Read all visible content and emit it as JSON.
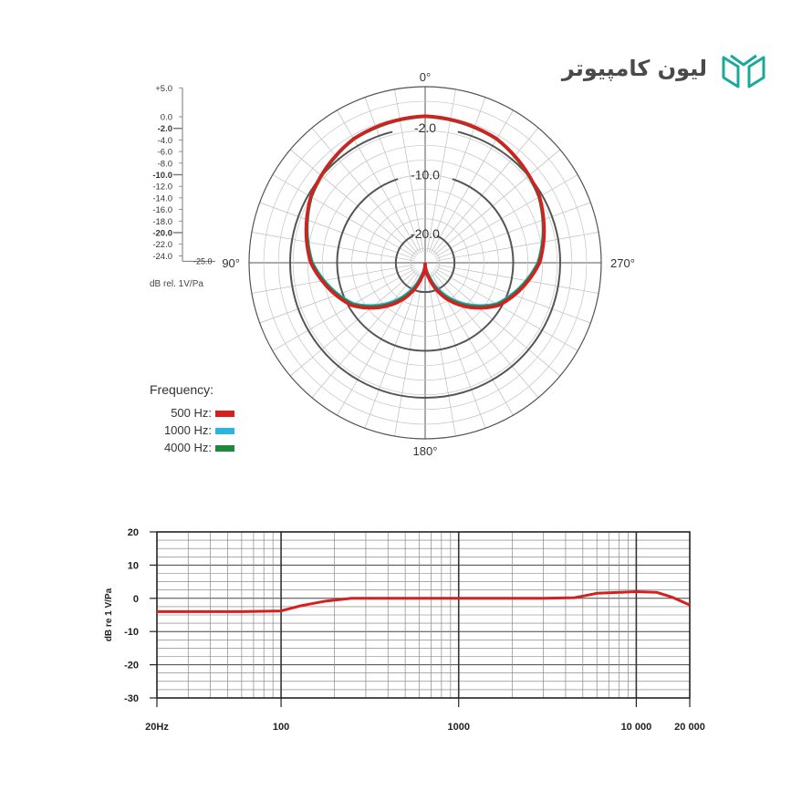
{
  "brand": {
    "name": "لیون کامپیوتر",
    "accent": "#1aa99b"
  },
  "polar": {
    "angle_labels": [
      "0°",
      "90°",
      "180°",
      "270°"
    ],
    "ring_labels": [
      "-2.0",
      "-10.0",
      "-20.0"
    ],
    "db_scale": [
      "+5.0",
      "0.0",
      "-2.0",
      "-4.0",
      "-6.0",
      "-8.0",
      "-10.0",
      "-12.0",
      "-14.0",
      "-16.0",
      "-18.0",
      "-20.0",
      "-22.0",
      "-24.0",
      "-25.0"
    ],
    "db_scale_bold": [
      "-2.0",
      "-10.0",
      "-20.0"
    ],
    "unit_label": "dB rel. 1V/Pa",
    "legend_title": "Frequency:"
  },
  "chart_data": [
    {
      "type": "line",
      "subtype": "polar",
      "theta_unit": "degrees",
      "r_unit": "dB",
      "rlim": [
        -25,
        5
      ],
      "series": [
        {
          "name": "500 Hz:",
          "color": "#d42020",
          "theta": [
            0,
            30,
            60,
            90,
            120,
            150,
            165,
            180
          ],
          "r": [
            0,
            -0.6,
            -2.5,
            -5.5,
            -10.5,
            -18,
            -22,
            -25
          ]
        },
        {
          "name": "1000 Hz:",
          "color": "#2ab4e0",
          "theta": [
            0,
            30,
            60,
            90,
            120,
            150,
            165,
            180
          ],
          "r": [
            0,
            -0.6,
            -2.6,
            -5.8,
            -11,
            -19,
            -23,
            -25
          ]
        },
        {
          "name": "4000 Hz:",
          "color": "#1c8a3a",
          "theta": [
            0,
            30,
            60,
            90,
            120,
            150,
            165,
            180
          ],
          "r": [
            -0.1,
            -0.7,
            -2.6,
            -5.7,
            -10.8,
            -18.5,
            -22.5,
            -25
          ]
        }
      ]
    },
    {
      "type": "line",
      "subtype": "frequency-response",
      "x_scale": "log",
      "xlim": [
        20,
        20000
      ],
      "ylim": [
        -30,
        20
      ],
      "ylabel": "dB re 1 V/Pa",
      "x_tick_values": [
        20,
        100,
        1000,
        10000,
        20000
      ],
      "x_tick_labels": [
        "20Hz",
        "100",
        "1000",
        "10 000",
        "20 000"
      ],
      "y_ticks": [
        20,
        10,
        0,
        -10,
        -20,
        -30
      ],
      "series": [
        {
          "color": "#d42020",
          "x": [
            20,
            60,
            100,
            130,
            180,
            250,
            400,
            1000,
            3000,
            4500,
            6000,
            10000,
            13000,
            16000,
            20000
          ],
          "y": [
            -4,
            -4,
            -3.8,
            -2.2,
            -0.8,
            0,
            0,
            0,
            0,
            0.2,
            1.5,
            2,
            1.8,
            0.3,
            -2
          ]
        }
      ]
    }
  ]
}
